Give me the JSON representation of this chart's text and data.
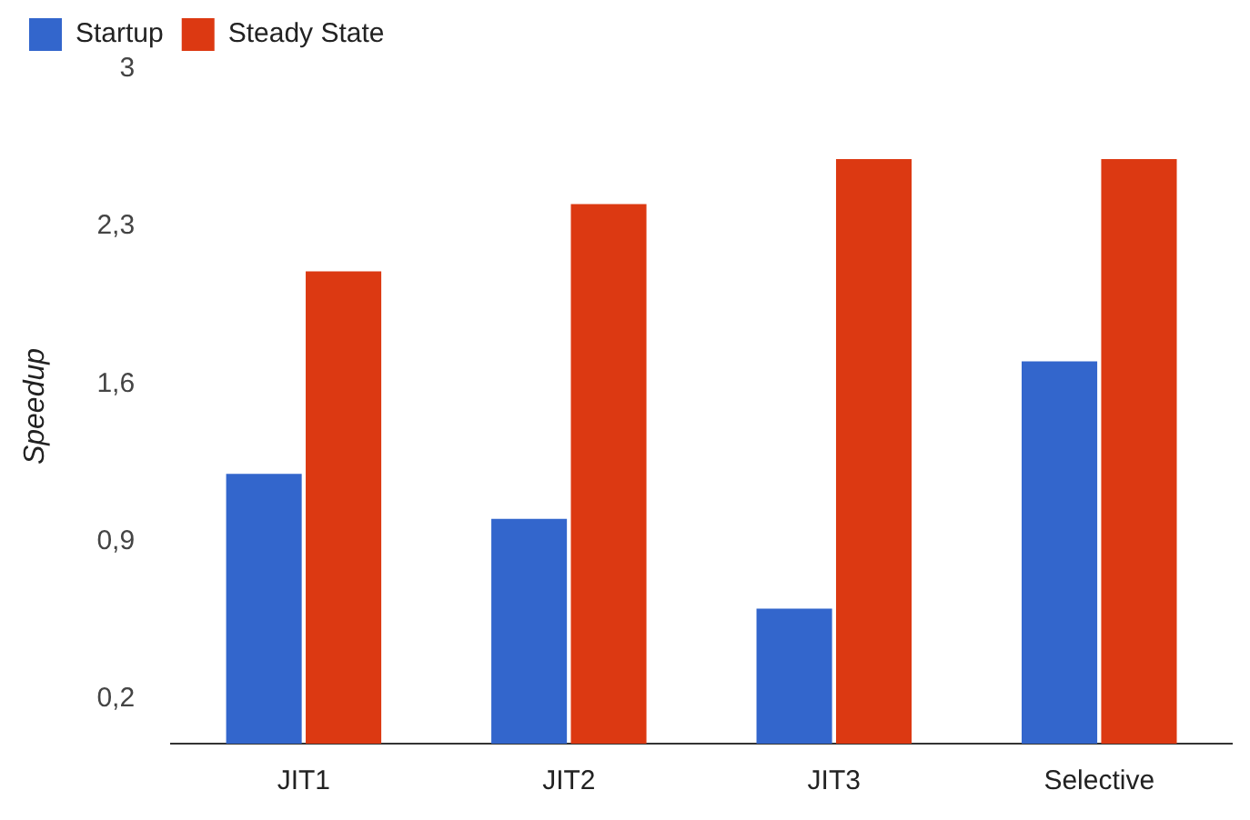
{
  "chart_data": {
    "type": "bar",
    "ylabel": "Speedup",
    "categories": [
      "JIT1",
      "JIT2",
      "JIT3",
      "Selective"
    ],
    "series": [
      {
        "name": "Startup",
        "color": "#3366cc",
        "values": [
          1.2,
          1.0,
          0.6,
          1.7
        ]
      },
      {
        "name": "Steady State",
        "color": "#dc3912",
        "values": [
          2.1,
          2.4,
          2.6,
          2.6
        ]
      }
    ],
    "ylim": [
      0,
      3
    ],
    "yticks": [
      {
        "value": 0.2,
        "label": "0,2"
      },
      {
        "value": 0.9,
        "label": "0,9"
      },
      {
        "value": 1.6,
        "label": "1,6"
      },
      {
        "value": 2.3,
        "label": "2,3"
      },
      3
    ],
    "grid": false,
    "legend": "top left"
  }
}
